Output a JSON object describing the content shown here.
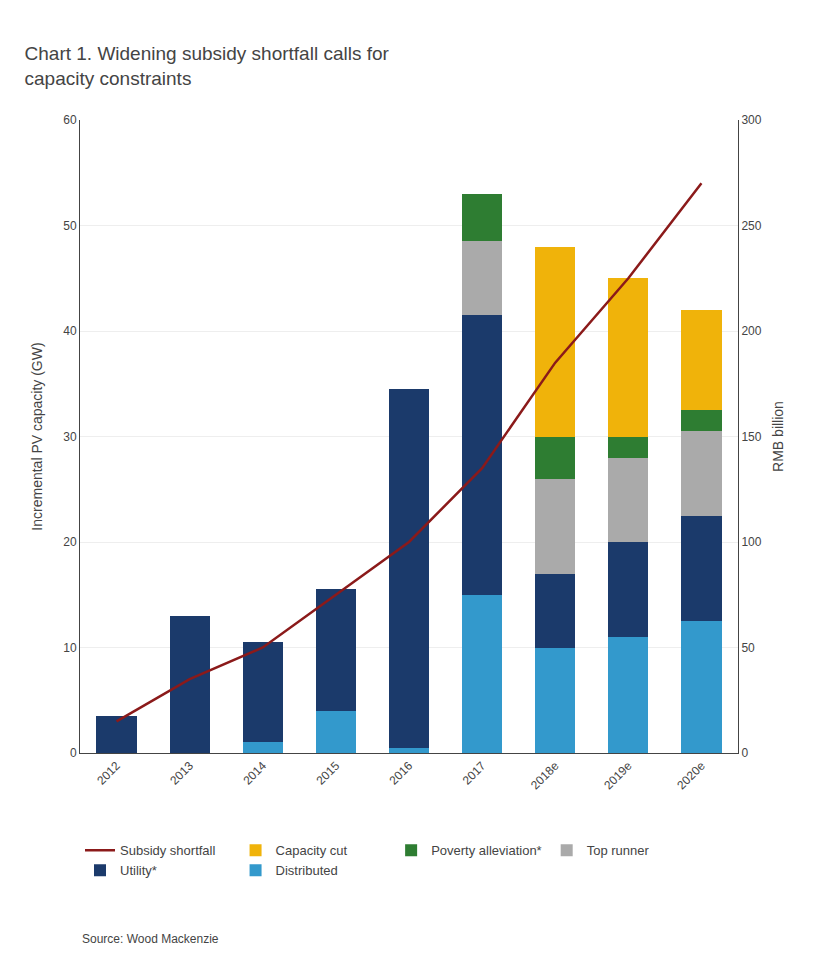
{
  "chart_data": {
    "type": "bar",
    "title": "Chart 1. Widening subsidy shortfall calls for\ncapacity constraints",
    "ylabel": "Incremental PV capacity (GW)",
    "y2label": "RMB billion",
    "categories": [
      "2012",
      "2013",
      "2014",
      "2015",
      "2016",
      "2017",
      "2018e",
      "2019e",
      "2020e"
    ],
    "stacked": true,
    "grid": true,
    "legend": "bottom",
    "series": [
      {
        "name": "Distributed",
        "color": "#3399CC",
        "values": [
          0,
          0,
          1.0,
          4.0,
          0.5,
          15.0,
          10.0,
          11.0,
          12.5
        ]
      },
      {
        "name": "Utility*",
        "color": "#1B3A6B",
        "values": [
          3.5,
          13.0,
          9.5,
          11.5,
          34.0,
          26.5,
          7.0,
          9.0,
          10.0
        ]
      },
      {
        "name": "Top runner",
        "color": "#AAAAAA",
        "values": [
          0,
          0,
          0,
          0,
          0,
          7.0,
          9.0,
          8.0,
          8.0
        ]
      },
      {
        "name": "Poverty alleviation*",
        "color": "#2E7D32",
        "values": [
          0,
          0,
          0,
          0,
          0,
          4.5,
          4.0,
          2.0,
          2.0
        ]
      },
      {
        "name": "Capacity cut",
        "color": "#F0B30A",
        "values": [
          0,
          0,
          0,
          0,
          0,
          0,
          18.0,
          15.0,
          9.5
        ]
      },
      {
        "name": "Subsidy shortfall",
        "type": "line",
        "axis": "y2",
        "color": "#8B1A1A",
        "values": [
          15,
          35,
          50,
          75,
          100,
          135,
          185,
          225,
          270
        ]
      }
    ],
    "ylim": [
      0,
      60
    ],
    "yticks": [
      0,
      10,
      20,
      30,
      40,
      50,
      60
    ],
    "y2lim": [
      0,
      300
    ],
    "y2ticks": [
      0,
      50,
      100,
      150,
      200,
      250,
      300
    ],
    "annotations": [
      "Source: Wood Mackenzie"
    ]
  }
}
